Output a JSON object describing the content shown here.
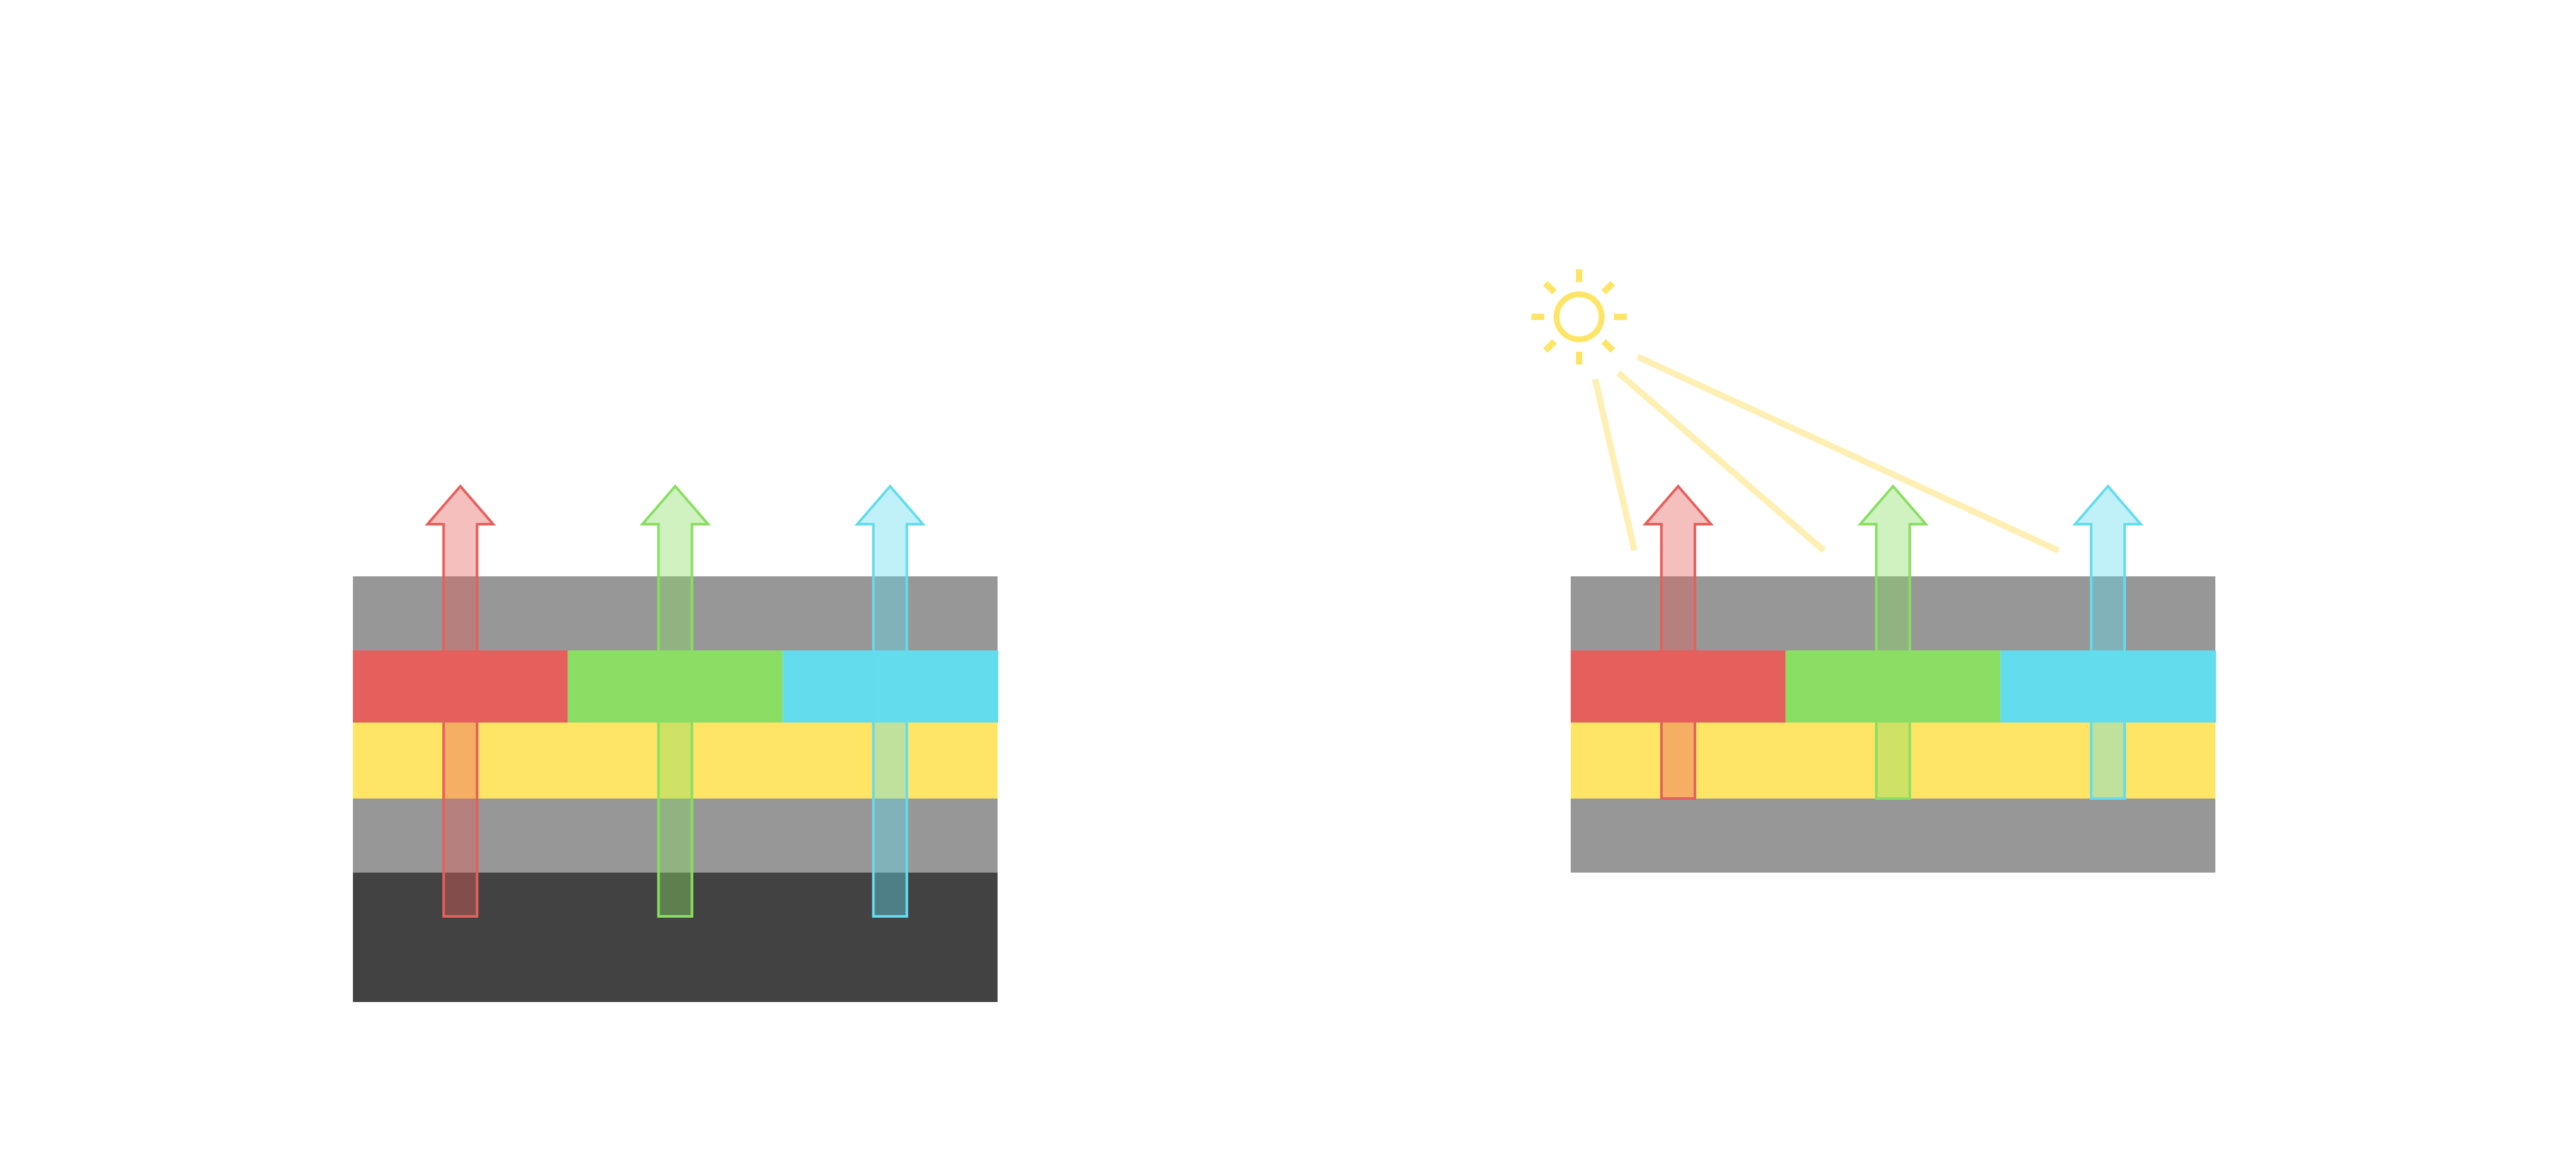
{
  "colors": {
    "layer_gray": "#979797",
    "layer_dark": "#424242",
    "filter_red": "#E5605C",
    "filter_green": "#8ADE63",
    "filter_cyan": "#63DCED",
    "layer_yellow": "#FEE566",
    "sun": "#FEE566",
    "sun_beam": "#FEF0B4"
  },
  "diagrams": [
    {
      "name": "left-stack",
      "has_sun": false
    },
    {
      "name": "right-stack",
      "has_sun": true
    }
  ]
}
